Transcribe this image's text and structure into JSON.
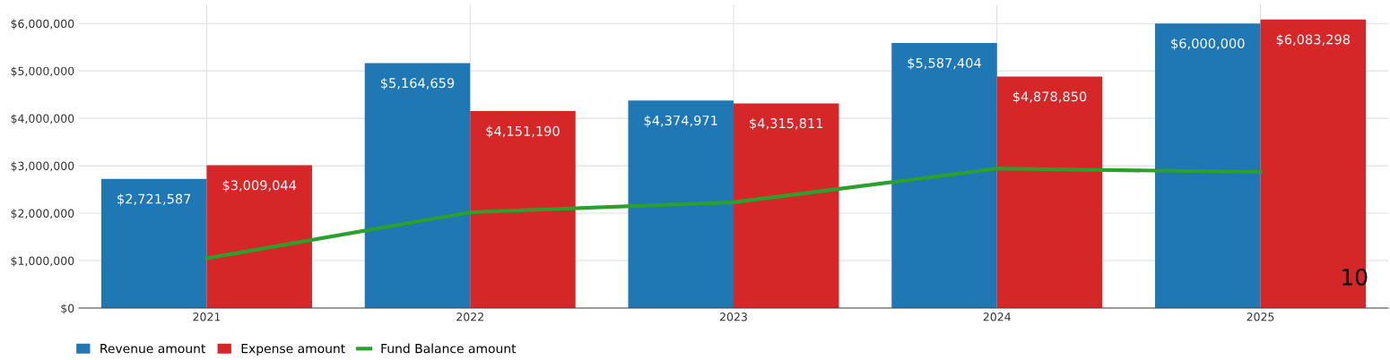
{
  "chart_data": {
    "type": "bar",
    "categories": [
      "2021",
      "2022",
      "2023",
      "2024",
      "2025"
    ],
    "series": [
      {
        "name": "Revenue amount",
        "color": "#1f77b4",
        "values": [
          2721587,
          5164659,
          4374971,
          5587404,
          6000000
        ],
        "value_labels": [
          "$2,721,587",
          "$5,164,659",
          "$4,374,971",
          "$5,587,404",
          "$6,000,000"
        ]
      },
      {
        "name": "Expense amount",
        "color": "#d62728",
        "values": [
          3009044,
          4151190,
          4315811,
          4878850,
          6083298
        ],
        "value_labels": [
          "$3,009,044",
          "$4,151,190",
          "$4,315,811",
          "$4,878,850",
          "$6,083,298"
        ]
      },
      {
        "name": "Fund Balance amount",
        "type": "line",
        "color": "#2ca02c",
        "values": [
          1050000,
          2020000,
          2230000,
          2940000,
          2870000
        ]
      }
    ],
    "ylim": [
      0,
      6400000
    ],
    "yticks": [
      {
        "value": 0,
        "label": "$0"
      },
      {
        "value": 1000000,
        "label": "$1,000,000"
      },
      {
        "value": 2000000,
        "label": "$2,000,000"
      },
      {
        "value": 3000000,
        "label": "$3,000,000"
      },
      {
        "value": 4000000,
        "label": "$4,000,000"
      },
      {
        "value": 5000000,
        "label": "$5,000,000"
      },
      {
        "value": 6000000,
        "label": "$6,000,000"
      }
    ],
    "grid": true,
    "legend": "bottom left",
    "marker": "none",
    "line_style": "solid",
    "annotations": [
      "10"
    ]
  }
}
